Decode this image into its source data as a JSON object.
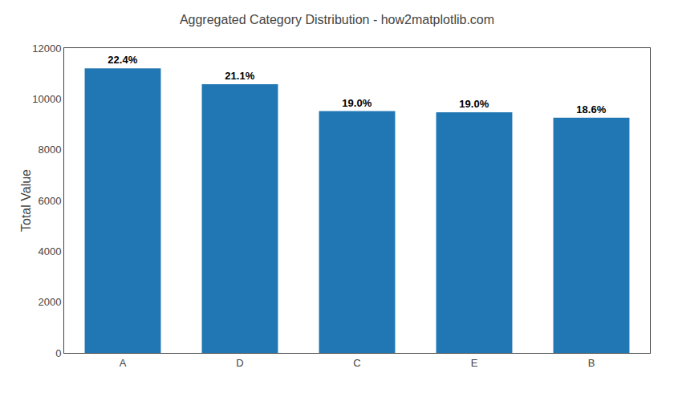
{
  "chart_data": {
    "type": "bar",
    "title": "Aggregated Category Distribution - how2matplotlib.com",
    "ylabel": "Total Value",
    "categories": [
      "A",
      "D",
      "C",
      "E",
      "B"
    ],
    "values": [
      11200,
      10580,
      9520,
      9470,
      9260
    ],
    "annotations": [
      "22.4%",
      "21.1%",
      "19.0%",
      "19.0%",
      "18.6%"
    ],
    "color": "#2077b4",
    "ylim": [
      0,
      12000
    ],
    "yticks": [
      0,
      2000,
      4000,
      6000,
      8000,
      10000,
      12000
    ],
    "grid": false
  }
}
